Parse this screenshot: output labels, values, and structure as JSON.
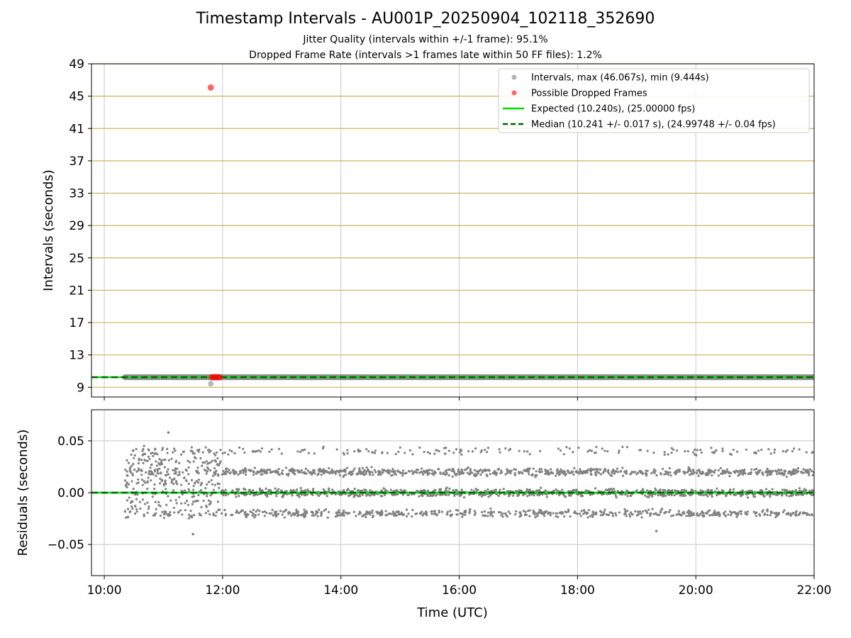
{
  "figure": {
    "title": "Timestamp Intervals - AU001P_20250904_102118_352690",
    "subtitle_1": "Jitter Quality (intervals within +/-1 frame): 95.1%",
    "subtitle_2": "Dropped Frame Rate (intervals >1 frames late within 50 FF files): 1.2%",
    "colors": {
      "intervals": "#808080",
      "dropped": "#ff0000",
      "expected": "#00e000",
      "median": "#006400",
      "band_grid": "#c8b560",
      "time_grid": "#c8c8c8"
    }
  },
  "chart_data": [
    {
      "type": "scatter",
      "name": "intervals",
      "ylabel": "Intervals (seconds)",
      "ylim": [
        7.8,
        49
      ],
      "yticks": [
        9,
        13,
        17,
        21,
        25,
        29,
        33,
        37,
        41,
        45,
        49
      ],
      "ytick_labels": [
        "9",
        "13",
        "17",
        "21",
        "25",
        "29",
        "33",
        "37",
        "41",
        "45",
        "49"
      ],
      "xlim": [
        "09:47",
        "22:00"
      ],
      "horizontal_band_lines": [
        9,
        13,
        17,
        21,
        25,
        29,
        33,
        37,
        41,
        45,
        49
      ],
      "grid": true,
      "legend_position": "top-right",
      "legend": [
        {
          "label": "Intervals, max (46.067s), min (9.444s)",
          "kind": "gray-dot"
        },
        {
          "label": "Possible Dropped Frames",
          "kind": "red-dot"
        },
        {
          "label": "Expected (10.240s), (25.00000 fps)",
          "kind": "green-line"
        },
        {
          "label": "Median (10.241 +/- 0.017 s), (24.99748 +/- 0.04 fps)",
          "kind": "dashed-line"
        }
      ],
      "series": [
        {
          "name": "Intervals, max (46.067s), min (9.444s)",
          "x_range": [
            "10:21",
            "22:00"
          ],
          "value": 10.24,
          "extra_points": [
            {
              "x": "11:48",
              "y": 9.444
            }
          ]
        },
        {
          "name": "Possible Dropped Frames",
          "points": [
            {
              "x": "11:48",
              "y": 46.067
            },
            {
              "x": "11:49",
              "y": 10.24
            },
            {
              "x": "11:51",
              "y": 10.24
            },
            {
              "x": "11:53",
              "y": 10.24
            },
            {
              "x": "11:55",
              "y": 10.24
            },
            {
              "x": "11:57",
              "y": 10.24
            }
          ]
        },
        {
          "name": "Expected (10.240s), (25.00000 fps)",
          "y": 10.24
        },
        {
          "name": "Median (10.241 +/- 0.017 s), (24.99748 +/- 0.04 fps)",
          "y": 10.241
        }
      ]
    },
    {
      "type": "scatter",
      "name": "residuals",
      "xlabel": "Time (UTC)",
      "ylabel": "Residuals (seconds)",
      "ylim": [
        -0.08,
        0.08
      ],
      "yticks": [
        -0.05,
        0.0,
        0.05
      ],
      "ytick_labels": [
        "−0.05",
        "0.00",
        "0.05"
      ],
      "xlim": [
        "09:47",
        "22:00"
      ],
      "xticks": [
        "10:00",
        "12:00",
        "14:00",
        "16:00",
        "18:00",
        "20:00",
        "22:00"
      ],
      "xtick_labels": [
        "10:00",
        "12:00",
        "14:00",
        "16:00",
        "18:00",
        "20:00",
        "22:00"
      ],
      "grid": true,
      "series": [
        {
          "name": "residuals",
          "x_range": [
            "10:21",
            "22:00"
          ],
          "levels_early": [
            -0.02,
            -0.01,
            0.0,
            0.01,
            0.02,
            0.03,
            0.04
          ],
          "levels_late": [
            -0.02,
            0.0,
            0.02,
            0.04
          ],
          "transition_time": "11:58",
          "notable_points": [
            {
              "x": "11:05",
              "y": 0.058
            },
            {
              "x": "11:30",
              "y": -0.04
            },
            {
              "x": "19:20",
              "y": -0.037
            }
          ]
        },
        {
          "name": "expected",
          "y": 0.0
        },
        {
          "name": "median",
          "y": 0.0
        }
      ]
    }
  ]
}
